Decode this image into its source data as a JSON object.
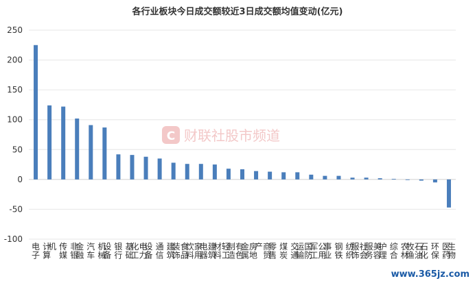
{
  "chart_data": {
    "type": "bar",
    "title": "各行业板块今日成交额较近3日成交额均值变动(亿元)",
    "categories": [
      "电子",
      "计算机",
      "传媒",
      "非银金融",
      "汽车",
      "机械设备",
      "银行",
      "基础化工",
      "电力设备",
      "通信",
      "建筑装饰",
      "食品饮料",
      "家用电器",
      "建筑材料",
      "轻工制造",
      "有色金属",
      "房地产",
      "商贸零售",
      "煤炭",
      "交通运输",
      "国防军工",
      "公用事业",
      "钢铁",
      "纺织服饰",
      "社会服务",
      "美容护理",
      "综合",
      "农林牧渔",
      "石油石化",
      "环保",
      "医药生物"
    ],
    "values": [
      225,
      124,
      122,
      102,
      91,
      87,
      42,
      41,
      38,
      35,
      28,
      26,
      26,
      25,
      18,
      17,
      14,
      13,
      12,
      12,
      8,
      6,
      6,
      3,
      3,
      2,
      1,
      -1,
      -2,
      -5,
      -47
    ],
    "ylim": [
      -100,
      250
    ],
    "yticks": [
      -100,
      -50,
      0,
      50,
      100,
      150,
      200,
      250
    ],
    "bar_color": "#4a7ebb",
    "grid": true,
    "xlabel": "",
    "ylabel": ""
  },
  "watermark": {
    "text": "财联社股市频道",
    "logo_letter": "C",
    "color": "#f3c8c8"
  },
  "corner_watermark": {
    "text": "www.365jz.com"
  }
}
